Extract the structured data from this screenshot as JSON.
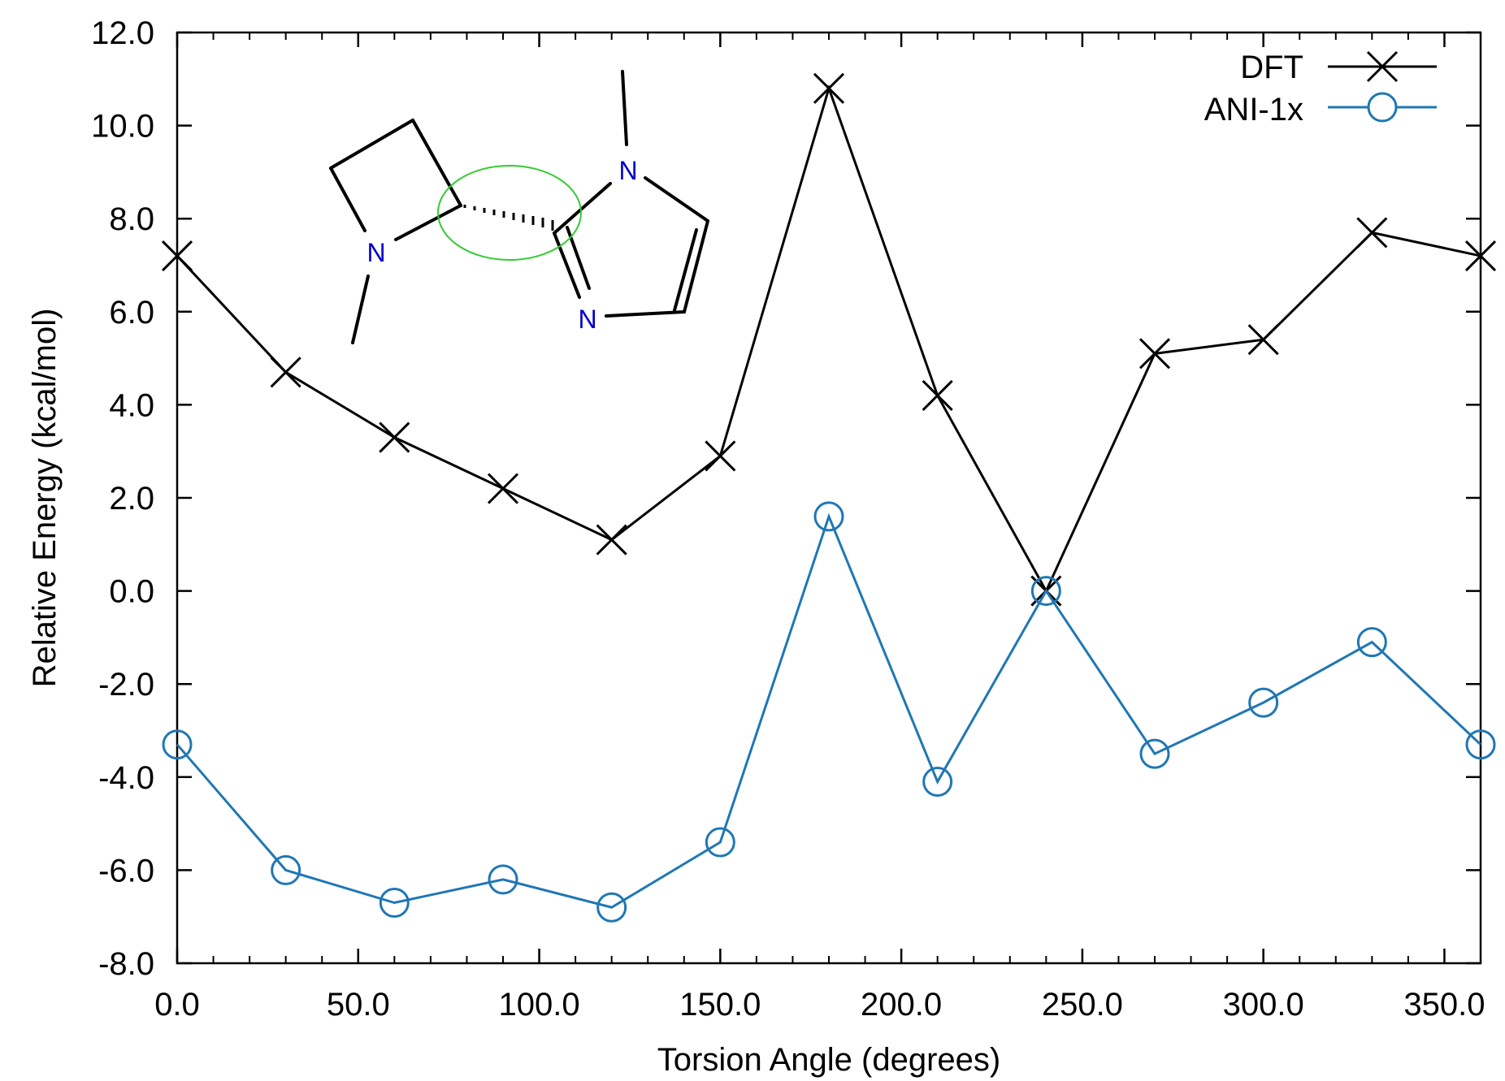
{
  "chart_data": {
    "type": "line",
    "xlabel": "Torsion Angle (degrees)",
    "ylabel": "Relative Energy (kcal/mol)",
    "xlim": [
      0,
      360
    ],
    "ylim": [
      -8,
      12
    ],
    "xticks": [
      0,
      50,
      100,
      150,
      200,
      250,
      300,
      350
    ],
    "xtick_labels": [
      "0.0",
      "50.0",
      "100.0",
      "150.0",
      "200.0",
      "250.0",
      "300.0",
      "350.0"
    ],
    "yticks": [
      -8,
      -6,
      -4,
      -2,
      0,
      2,
      4,
      6,
      8,
      10,
      12
    ],
    "ytick_labels": [
      "-8.0",
      "-6.0",
      "-4.0",
      "-2.0",
      "0.0",
      "2.0",
      "4.0",
      "6.0",
      "8.0",
      "10.0",
      "12.0"
    ],
    "grid": false,
    "legend_position": "top-right",
    "x": [
      0,
      30,
      60,
      90,
      120,
      150,
      180,
      210,
      240,
      270,
      300,
      330,
      360
    ],
    "series": [
      {
        "name": "DFT",
        "marker": "cross",
        "color": "#000000",
        "values": [
          7.2,
          4.7,
          3.3,
          2.2,
          1.1,
          2.9,
          10.8,
          4.2,
          0.0,
          5.1,
          5.4,
          7.7,
          7.2
        ]
      },
      {
        "name": "ANI-1x",
        "marker": "circle",
        "color": "#1f77b4",
        "values": [
          -3.3,
          -6.0,
          -6.7,
          -6.2,
          -6.8,
          -5.4,
          1.6,
          -4.1,
          0.0,
          -3.5,
          -2.4,
          -1.1,
          -3.3
        ]
      }
    ],
    "inset_molecule": {
      "atom_labels": [
        "N",
        "N",
        "N"
      ],
      "highlight_color": "#33cc33",
      "atom_label_color": "#0000cc"
    }
  }
}
